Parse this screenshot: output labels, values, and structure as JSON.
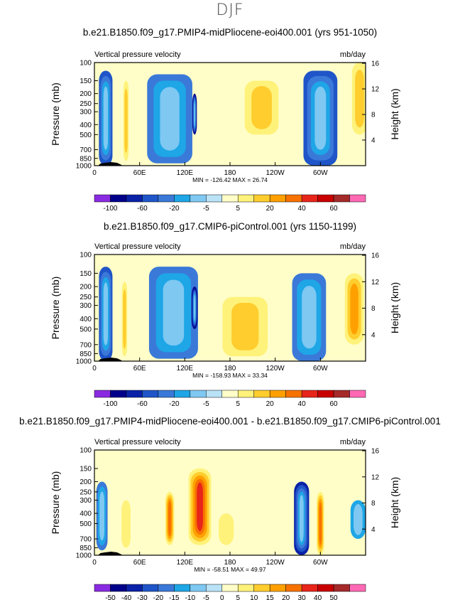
{
  "page": {
    "title": "DJF"
  },
  "chart_data": [
    {
      "type": "heatmap",
      "title": "b.e21.B1850.f09_g17.PMIP4-midPliocene-eoi400.001 (yrs 951-1050)",
      "left_label": "Vertical pressure velocity",
      "right_label": "mb/day",
      "ylabel": "Pressure  (mb)",
      "ylabel_right": "Height  (km)",
      "xticks": [
        "0",
        "60E",
        "120E",
        "180",
        "120W",
        "60W"
      ],
      "xtick_values": [
        0,
        60,
        120,
        180,
        240,
        300
      ],
      "xlim": [
        0,
        360
      ],
      "yticks": [
        "100",
        "150",
        "200",
        "250",
        "300",
        "400",
        "500",
        "700",
        "850",
        "1000"
      ],
      "ytick_values": [
        100,
        150,
        200,
        250,
        300,
        400,
        500,
        700,
        850,
        1000
      ],
      "ylim": [
        1000,
        100
      ],
      "right_ticks": [
        "4",
        "8",
        "12",
        "16"
      ],
      "right_tick_values": [
        4,
        8,
        12,
        16
      ],
      "min_max": "MIN = -126.42   MAX =  26.74",
      "colorbar": {
        "labels": [
          "-100",
          "-60",
          "-20",
          "-5",
          "5",
          "20",
          "40",
          "60"
        ],
        "levels": [
          -100,
          -80,
          -60,
          -40,
          -20,
          -10,
          -5,
          0,
          5,
          10,
          20,
          30,
          40,
          50,
          60
        ]
      },
      "features": [
        {
          "lon": 15,
          "p_top": 120,
          "p_bot": 1000,
          "value": -45,
          "width": 18
        },
        {
          "lon": 42,
          "p_top": 150,
          "p_bot": 900,
          "value": 18,
          "width": 7
        },
        {
          "lon": 100,
          "p_top": 130,
          "p_bot": 950,
          "value": -25,
          "width": 60
        },
        {
          "lon": 133,
          "p_top": 200,
          "p_bot": 500,
          "value": -85,
          "width": 6
        },
        {
          "lon": 165,
          "p_top": 300,
          "p_bot": 800,
          "value": 3,
          "width": 30
        },
        {
          "lon": 222,
          "p_top": 150,
          "p_bot": 500,
          "value": 15,
          "width": 45
        },
        {
          "lon": 300,
          "p_top": 120,
          "p_bot": 1000,
          "value": -40,
          "width": 45
        },
        {
          "lon": 352,
          "p_top": 100,
          "p_bot": 500,
          "value": 10,
          "width": 20
        }
      ]
    },
    {
      "type": "heatmap",
      "title": "b.e21.B1850.f09_g17.CMIP6-piControl.001 (yrs 1150-1199)",
      "left_label": "Vertical pressure velocity",
      "right_label": "mb/day",
      "ylabel": "Pressure  (mb)",
      "ylabel_right": "Height  (km)",
      "xticks": [
        "0",
        "60E",
        "120E",
        "180",
        "120W",
        "60W"
      ],
      "xtick_values": [
        0,
        60,
        120,
        180,
        240,
        300
      ],
      "xlim": [
        0,
        360
      ],
      "yticks": [
        "100",
        "150",
        "200",
        "250",
        "300",
        "400",
        "500",
        "700",
        "850",
        "1000"
      ],
      "ytick_values": [
        100,
        150,
        200,
        250,
        300,
        400,
        500,
        700,
        850,
        1000
      ],
      "ylim": [
        1000,
        100
      ],
      "right_ticks": [
        "4",
        "8",
        "12",
        "16"
      ],
      "right_tick_values": [
        4,
        8,
        12,
        16
      ],
      "min_max": "MIN = -158.93   MAX =  33.34",
      "colorbar": {
        "labels": [
          "-100",
          "-60",
          "-20",
          "-5",
          "5",
          "20",
          "40",
          "60"
        ],
        "levels": [
          -100,
          -80,
          -60,
          -40,
          -20,
          -10,
          -5,
          0,
          5,
          10,
          20,
          30,
          40,
          50,
          60
        ]
      },
      "features": [
        {
          "lon": 15,
          "p_top": 130,
          "p_bot": 1000,
          "value": -40,
          "width": 18
        },
        {
          "lon": 40,
          "p_top": 180,
          "p_bot": 900,
          "value": 15,
          "width": 7
        },
        {
          "lon": 105,
          "p_top": 130,
          "p_bot": 950,
          "value": -30,
          "width": 65
        },
        {
          "lon": 133,
          "p_top": 200,
          "p_bot": 500,
          "value": -90,
          "width": 8
        },
        {
          "lon": 200,
          "p_top": 250,
          "p_bot": 900,
          "value": 18,
          "width": 60
        },
        {
          "lon": 285,
          "p_top": 150,
          "p_bot": 1000,
          "value": -35,
          "width": 45
        },
        {
          "lon": 345,
          "p_top": 150,
          "p_bot": 700,
          "value": 25,
          "width": 25
        }
      ]
    },
    {
      "type": "heatmap",
      "title": "b.e21.B1850.f09_g17.PMIP4-midPliocene-eoi400.001 - b.e21.B1850.f09_g17.CMIP6-piControl.001",
      "left_label": "Vertical pressure velocity",
      "right_label": "mb/day",
      "ylabel": "Pressure  (mb)",
      "ylabel_right": "Height  (km)",
      "xticks": [
        "0",
        "60E",
        "120E",
        "180",
        "120W",
        "60W"
      ],
      "xtick_values": [
        0,
        60,
        120,
        180,
        240,
        300
      ],
      "xlim": [
        0,
        360
      ],
      "yticks": [
        "100",
        "150",
        "200",
        "250",
        "300",
        "400",
        "500",
        "700",
        "850",
        "1000"
      ],
      "ytick_values": [
        100,
        150,
        200,
        250,
        300,
        400,
        500,
        700,
        850,
        1000
      ],
      "ylim": [
        1000,
        100
      ],
      "right_ticks": [
        "4",
        "8",
        "12",
        "16"
      ],
      "right_tick_values": [
        4,
        8,
        12,
        16
      ],
      "min_max": "MIN =  -58.51   MAX =  49.97",
      "colorbar": {
        "labels": [
          "-50",
          "-40",
          "-30",
          "-20",
          "-15",
          "-10",
          "-5",
          "0",
          "5",
          "10",
          "15",
          "20",
          "30",
          "40",
          "50"
        ],
        "levels": [
          -50,
          -40,
          -30,
          -20,
          -15,
          -10,
          -5,
          0,
          5,
          10,
          15,
          20,
          30,
          40,
          50
        ]
      },
      "features": [
        {
          "lon": 10,
          "p_top": 200,
          "p_bot": 900,
          "value": -15,
          "width": 15
        },
        {
          "lon": 42,
          "p_top": 300,
          "p_bot": 850,
          "value": 8,
          "width": 12
        },
        {
          "lon": 100,
          "p_top": 250,
          "p_bot": 800,
          "value": 25,
          "width": 12
        },
        {
          "lon": 140,
          "p_top": 150,
          "p_bot": 800,
          "value": 35,
          "width": 30
        },
        {
          "lon": 175,
          "p_top": 400,
          "p_bot": 800,
          "value": 8,
          "width": 20
        },
        {
          "lon": 275,
          "p_top": 200,
          "p_bot": 1000,
          "value": -30,
          "width": 20
        },
        {
          "lon": 300,
          "p_top": 250,
          "p_bot": 1000,
          "value": 25,
          "width": 10
        },
        {
          "lon": 350,
          "p_top": 300,
          "p_bot": 700,
          "value": -10,
          "width": 20
        }
      ]
    }
  ],
  "colors": {
    "scale_a": [
      "#8a2be2",
      "#00008b",
      "#0a22a8",
      "#1f55c8",
      "#3a79d8",
      "#1ea6e6",
      "#7ec8f2",
      "#b9e2f7",
      "#fffec8",
      "#fff27a",
      "#ffcd2e",
      "#ffa000",
      "#f77200",
      "#e8251a",
      "#c90000",
      "#a52a2a",
      "#ff69b4"
    ],
    "scale_b": [
      "#8a2be2",
      "#00008b",
      "#0a22a8",
      "#1f55c8",
      "#3a79d8",
      "#1ea6e6",
      "#7ec8f2",
      "#b9e2f7",
      "#fffec8",
      "#fff27a",
      "#ffcd2e",
      "#ffa000",
      "#f77200",
      "#e8251a",
      "#c90000",
      "#a52a2a",
      "#ff69b4"
    ],
    "topography": "#000000"
  }
}
